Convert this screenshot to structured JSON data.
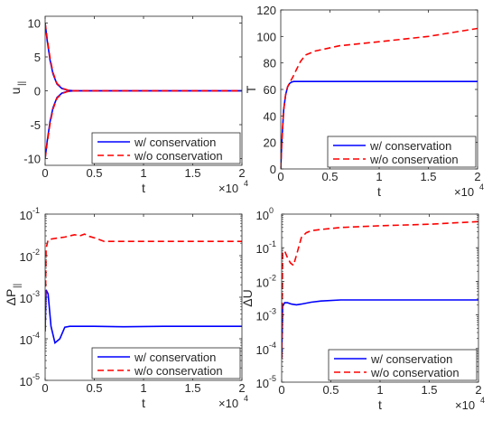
{
  "colors": {
    "with_conservation": "#0000ff",
    "without_conservation": "#ff0000",
    "axis": "#262626"
  },
  "chart_data": [
    {
      "id": "upar",
      "type": "line",
      "xlabel": "t",
      "ylabel": "u",
      "ylabel_sub": "||",
      "x_exponent": "×10",
      "x_exponent_power": "4",
      "x_scale": "linear",
      "y_scale": "linear",
      "xlim": [
        0,
        20000
      ],
      "ylim": [
        -11,
        11
      ],
      "xticks": [
        0,
        5000,
        10000,
        15000,
        20000
      ],
      "xtick_labels": [
        "0",
        "0.5",
        "1",
        "1.5",
        "2"
      ],
      "yticks": [
        -10,
        -5,
        0,
        5,
        10
      ],
      "ytick_labels": [
        "-10",
        "-5",
        "0",
        "5",
        "10"
      ],
      "legend": {
        "position": "bottom-right",
        "entries": [
          "w/ conservation",
          "w/o conservation"
        ]
      },
      "series": [
        {
          "name": "w/ conservation",
          "style": "solid",
          "x": [
            0,
            200,
            500,
            800,
            1200,
            1700,
            2300,
            3000,
            5000,
            10000,
            20000
          ],
          "y": [
            10,
            7.5,
            4.5,
            2.5,
            1.0,
            0.35,
            0.08,
            0,
            0,
            0,
            0
          ]
        },
        {
          "name": "w/ conservation",
          "style": "solid",
          "x": [
            0,
            200,
            500,
            800,
            1200,
            1700,
            2300,
            3000,
            5000,
            10000,
            20000
          ],
          "y": [
            -10,
            -7.5,
            -4.5,
            -2.5,
            -1.0,
            -0.35,
            -0.08,
            0,
            0,
            0,
            0
          ]
        },
        {
          "name": "w/o conservation",
          "style": "dashed",
          "x": [
            0,
            200,
            500,
            800,
            1200,
            1700,
            2300,
            3000,
            5000,
            10000,
            20000
          ],
          "y": [
            10,
            7.8,
            4.8,
            2.7,
            1.1,
            0.4,
            0.1,
            0,
            0,
            0,
            0
          ]
        },
        {
          "name": "w/o conservation",
          "style": "dashed",
          "x": [
            0,
            200,
            500,
            800,
            1200,
            1700,
            2300,
            3000,
            5000,
            10000,
            20000
          ],
          "y": [
            -10,
            -7.8,
            -4.8,
            -2.7,
            -1.1,
            -0.4,
            -0.1,
            0,
            0,
            0,
            0
          ]
        }
      ]
    },
    {
      "id": "temp",
      "type": "line",
      "xlabel": "t",
      "ylabel": "T",
      "ylabel_sub": "",
      "x_exponent": "×10",
      "x_exponent_power": "4",
      "x_scale": "linear",
      "y_scale": "linear",
      "xlim": [
        0,
        20000
      ],
      "ylim": [
        0,
        120
      ],
      "xticks": [
        0,
        5000,
        10000,
        15000,
        20000
      ],
      "xtick_labels": [
        "0",
        "0.5",
        "1",
        "1.5",
        "2"
      ],
      "yticks": [
        0,
        20,
        40,
        60,
        80,
        100,
        120
      ],
      "ytick_labels": [
        "0",
        "20",
        "40",
        "60",
        "80",
        "100",
        "120"
      ],
      "legend": {
        "position": "bottom-right",
        "entries": [
          "w/ conservation",
          "w/o conservation"
        ]
      },
      "series": [
        {
          "name": "w/ conservation",
          "style": "solid",
          "x": [
            0,
            100,
            300,
            500,
            700,
            900,
            1100,
            1300,
            2000,
            5000,
            10000,
            20000
          ],
          "y": [
            0,
            20,
            45,
            56,
            62,
            64.5,
            65.5,
            66,
            66,
            66,
            66,
            66
          ]
        },
        {
          "name": "w/o conservation",
          "style": "dashed",
          "x": [
            0,
            100,
            300,
            500,
            700,
            900,
            1200,
            1600,
            2000,
            2500,
            3500,
            6000,
            10000,
            15000,
            20000
          ],
          "y": [
            0,
            20,
            45,
            56,
            62,
            65,
            69,
            75,
            81,
            86,
            89,
            93,
            96,
            100,
            106
          ]
        }
      ]
    },
    {
      "id": "dppar",
      "type": "line",
      "xlabel": "t",
      "ylabel": "ΔP",
      "ylabel_sub": "||",
      "x_exponent": "×10",
      "x_exponent_power": "4",
      "x_scale": "linear",
      "y_scale": "log",
      "xlim": [
        0,
        20000
      ],
      "ylim_exp": [
        -5,
        -1
      ],
      "xticks": [
        0,
        5000,
        10000,
        15000,
        20000
      ],
      "xtick_labels": [
        "0",
        "0.5",
        "1",
        "1.5",
        "2"
      ],
      "yticks_exp": [
        -5,
        -4,
        -3,
        -2,
        -1
      ],
      "ytick_labels": [
        "10",
        "10",
        "10",
        "10",
        "10"
      ],
      "ytick_powers": [
        "-5",
        "-4",
        "-3",
        "-2",
        "-1"
      ],
      "legend": {
        "position": "bottom-right",
        "entries": [
          "w/ conservation",
          "w/o conservation"
        ]
      },
      "series": [
        {
          "name": "w/ conservation",
          "style": "solid",
          "x": [
            0,
            100,
            300,
            600,
            1000,
            1500,
            2000,
            2500,
            3000,
            5000,
            8000,
            12000,
            20000
          ],
          "y": [
            0.00015,
            0.0015,
            0.0012,
            0.0002,
            8e-05,
            0.0001,
            0.00019,
            0.0002,
            0.0002,
            0.0002,
            0.000195,
            0.0002,
            0.0002
          ]
        },
        {
          "name": "w/o conservation",
          "style": "dashed",
          "x": [
            0,
            100,
            300,
            600,
            1000,
            2000,
            3000,
            3500,
            4000,
            4500,
            5000,
            6000,
            10000,
            15000,
            20000
          ],
          "y": [
            0.0002,
            0.015,
            0.024,
            0.025,
            0.026,
            0.028,
            0.032,
            0.03,
            0.033,
            0.029,
            0.027,
            0.022,
            0.022,
            0.022,
            0.022
          ]
        }
      ]
    },
    {
      "id": "du",
      "type": "line",
      "xlabel": "t",
      "ylabel": "ΔU",
      "ylabel_sub": "",
      "x_exponent": "×10",
      "x_exponent_power": "4",
      "x_scale": "linear",
      "y_scale": "log",
      "xlim": [
        0,
        20000
      ],
      "ylim_exp": [
        -5,
        0
      ],
      "xticks": [
        0,
        5000,
        10000,
        15000,
        20000
      ],
      "xtick_labels": [
        "0",
        "0.5",
        "1",
        "1.5",
        "2"
      ],
      "yticks_exp": [
        -5,
        -4,
        -3,
        -2,
        -1,
        0
      ],
      "ytick_labels": [
        "10",
        "10",
        "10",
        "10",
        "10",
        "10"
      ],
      "ytick_powers": [
        "-5",
        "-4",
        "-3",
        "-2",
        "-1",
        "0"
      ],
      "legend": {
        "position": "bottom-right",
        "entries": [
          "w/ conservation",
          "w/o conservation"
        ]
      },
      "series": [
        {
          "name": "w/ conservation",
          "style": "solid",
          "x": [
            0,
            100,
            300,
            600,
            1000,
            1500,
            2000,
            3000,
            4000,
            6000,
            10000,
            20000
          ],
          "y": [
            5e-05,
            0.0018,
            0.0023,
            0.0023,
            0.0021,
            0.002,
            0.0021,
            0.0024,
            0.0026,
            0.0028,
            0.0028,
            0.0028
          ]
        },
        {
          "name": "w/o conservation",
          "style": "dashed",
          "x": [
            0,
            100,
            300,
            600,
            900,
            1200,
            1500,
            2000,
            2500,
            3000,
            4000,
            6000,
            10000,
            15000,
            20000
          ],
          "y": [
            5e-05,
            0.07,
            0.08,
            0.05,
            0.035,
            0.03,
            0.06,
            0.2,
            0.28,
            0.32,
            0.35,
            0.4,
            0.45,
            0.5,
            0.6
          ]
        }
      ]
    }
  ]
}
